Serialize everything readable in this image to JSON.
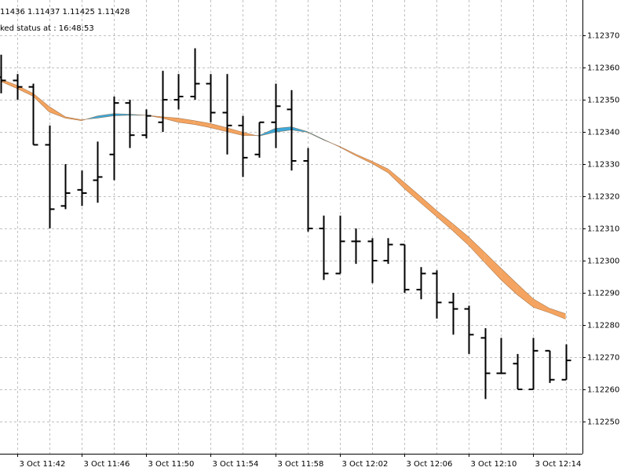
{
  "chart_data": {
    "type": "ohlc",
    "info": [
      "11436 1.11437 1.11425 1.11428",
      "ked status at : 16:48:53"
    ],
    "categories": [
      null,
      "3 Oct 11:42",
      null,
      null,
      null,
      "3 Oct 11:46",
      null,
      null,
      null,
      "3 Oct 11:50",
      null,
      null,
      null,
      "3 Oct 11:54",
      null,
      null,
      null,
      "3 Oct 11:58",
      null,
      null,
      null,
      "3 Oct 12:02",
      null,
      null,
      null,
      "3 Oct 12:06",
      null,
      null,
      null,
      "3 Oct 12:10",
      null,
      null,
      null,
      "3 Oct 12:14",
      null,
      null
    ],
    "open": [
      1.12357,
      1.12356,
      1.12354,
      1.12336,
      1.12317,
      1.12322,
      1.12325,
      1.12333,
      1.12349,
      1.12339,
      1.12343,
      1.1235,
      1.12351,
      1.12355,
      1.12346,
      1.12342,
      1.12333,
      1.12343,
      1.12347,
      1.12331,
      1.1231,
      1.12296,
      1.12306,
      1.12306,
      1.123,
      1.12305,
      1.12291,
      1.12296,
      1.12287,
      1.12285,
      1.12276,
      1.12265,
      1.12268,
      1.1226,
      1.12272,
      1.12263
    ],
    "high": [
      1.12364,
      1.12358,
      1.12355,
      1.12342,
      1.1233,
      1.12328,
      1.12337,
      1.12351,
      1.1235,
      1.12347,
      1.12359,
      1.12358,
      1.12366,
      1.12358,
      1.12358,
      1.12345,
      1.12343,
      1.12355,
      1.12353,
      1.12335,
      1.12314,
      1.12314,
      1.1231,
      1.12307,
      1.12307,
      1.12305,
      1.12298,
      1.12297,
      1.1229,
      1.12286,
      1.12279,
      1.12276,
      1.12271,
      1.12276,
      1.12272,
      1.12274
    ],
    "low": [
      1.12352,
      1.1235,
      1.12336,
      1.1231,
      1.12316,
      1.12317,
      1.12318,
      1.12325,
      1.12335,
      1.12338,
      1.1234,
      1.12347,
      1.1235,
      1.12343,
      1.12333,
      1.12326,
      1.12332,
      1.12335,
      1.12328,
      1.12309,
      1.12294,
      1.12296,
      1.12299,
      1.12293,
      1.12299,
      1.1229,
      1.12288,
      1.12282,
      1.12277,
      1.12271,
      1.12257,
      1.12265,
      1.1226,
      1.1226,
      1.12262,
      1.12263
    ],
    "close": [
      1.12356,
      1.12354,
      1.12336,
      1.12316,
      1.12321,
      1.12321,
      1.12326,
      1.12349,
      1.12339,
      1.12345,
      1.1235,
      1.12351,
      1.12355,
      1.12346,
      1.12342,
      1.12332,
      1.12343,
      1.12348,
      1.12331,
      1.1231,
      1.12296,
      1.12306,
      1.12306,
      1.123,
      1.12305,
      1.12291,
      1.12296,
      1.12287,
      1.12285,
      1.12277,
      1.12265,
      1.12265,
      1.1226,
      1.12272,
      1.12263,
      1.12269
    ],
    "bar_color": "#000000",
    "bands": [
      {
        "values": [
          1.123564,
          1.123545,
          1.12352,
          1.123479,
          1.123447,
          1.123438,
          1.123443,
          1.12345,
          1.123452,
          1.123452,
          1.123447,
          1.123443,
          1.123435,
          1.123426,
          1.123413,
          1.123399,
          1.123387,
          1.123399,
          1.123406,
          1.123399,
          1.123375,
          1.123355,
          1.123331,
          1.123309,
          1.123285,
          1.123243,
          1.1232,
          1.123156,
          1.123115,
          1.123073,
          1.123025,
          1.122976,
          1.122928,
          1.122881,
          1.122852,
          1.122835
        ]
      },
      {
        "values": [
          1.123557,
          1.123535,
          1.123511,
          1.123462,
          1.123443,
          1.123435,
          1.12345,
          1.123457,
          1.123455,
          1.123452,
          1.123443,
          1.12343,
          1.123423,
          1.123413,
          1.123401,
          1.123389,
          1.123389,
          1.123411,
          1.123416,
          1.123401,
          1.123377,
          1.123353,
          1.123326,
          1.123302,
          1.123273,
          1.123224,
          1.12318,
          1.123137,
          1.123093,
          1.123047,
          1.122993,
          1.12294,
          1.122894,
          1.122855,
          1.122838,
          1.122818
        ]
      }
    ],
    "fill_colors": {
      "first_above": "#f4a460",
      "first_below": "#3ea8d8"
    },
    "ylim": [
      1.1224,
      1.12381
    ],
    "yticks": [
      {
        "value": 1.1237,
        "label": "1.12370"
      },
      {
        "value": 1.1236,
        "label": "1.12360"
      },
      {
        "value": 1.1235,
        "label": "1.12350"
      },
      {
        "value": 1.1234,
        "label": "1.12340"
      },
      {
        "value": 1.1233,
        "label": "1.12330"
      },
      {
        "value": 1.1232,
        "label": "1.12320"
      },
      {
        "value": 1.1231,
        "label": "1.12310"
      },
      {
        "value": 1.123,
        "label": "1.12300"
      },
      {
        "value": 1.1229,
        "label": "1.12290"
      },
      {
        "value": 1.1228,
        "label": "1.12280"
      },
      {
        "value": 1.1227,
        "label": "1.12270"
      },
      {
        "value": 1.1226,
        "label": "1.12260"
      },
      {
        "value": 1.1225,
        "label": "1.12250"
      }
    ],
    "grid": true
  }
}
